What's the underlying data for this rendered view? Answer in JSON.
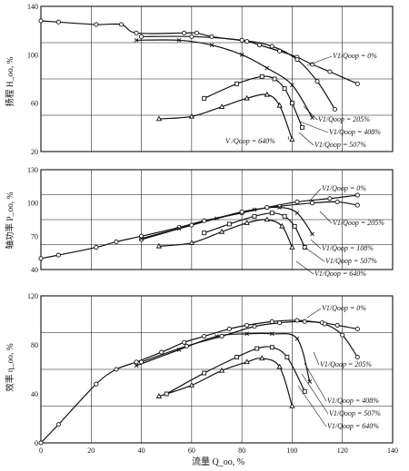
{
  "colors": {
    "ink": "#111111",
    "background": "#ffffff"
  },
  "chart_data": [
    {
      "type": "line",
      "ylabel": "扬程 H_oo, %",
      "ylim": [
        20,
        140
      ],
      "xlim": [
        0,
        140
      ],
      "grid": true,
      "xtick_labels": [],
      "ytick_labels": [
        "140",
        "100",
        "60",
        "20"
      ],
      "series": [
        {
          "name": "V1/Qoop = 0%",
          "marker": "circle",
          "x": [
            0,
            7,
            22,
            32,
            38,
            57,
            62,
            68,
            82,
            87,
            95,
            102,
            108,
            115,
            126
          ],
          "y": [
            128,
            127,
            125,
            125,
            118,
            118,
            118,
            115,
            111,
            108,
            103,
            98,
            92,
            86,
            76
          ]
        },
        {
          "name": "V1/Qoop = 205%",
          "marker": "circle",
          "x": [
            40,
            60,
            80,
            92,
            102,
            110,
            117
          ],
          "y": [
            115,
            115,
            112,
            107,
            96,
            78,
            55
          ]
        },
        {
          "name": "V1/Qoop = 408%",
          "marker": "cross",
          "x": [
            38,
            55,
            68,
            80,
            90,
            100,
            108
          ],
          "y": [
            112,
            112,
            108,
            100,
            89,
            75,
            48
          ]
        },
        {
          "name": "V1/Qoop = 507%",
          "marker": "square",
          "x": [
            65,
            78,
            88,
            93,
            97,
            100,
            104
          ],
          "y": [
            64,
            76,
            82,
            80,
            72,
            60,
            40
          ]
        },
        {
          "name": "V/Qoop = 640%",
          "marker": "triangle",
          "x": [
            47,
            60,
            72,
            82,
            90,
            95,
            100
          ],
          "y": [
            47,
            49,
            57,
            64,
            67,
            58,
            30
          ]
        }
      ]
    },
    {
      "type": "line",
      "ylabel": "轴功率 P_oo, %",
      "ylim": [
        40,
        130
      ],
      "xlim": [
        0,
        140
      ],
      "grid": true,
      "xtick_labels": [],
      "ytick_labels": [
        "130",
        "100",
        "70",
        "40"
      ],
      "series": [
        {
          "name": "V1/Qoop = 0%",
          "marker": "circle",
          "x": [
            0,
            7,
            22,
            30,
            40,
            55,
            65,
            80,
            90,
            102,
            115,
            126
          ],
          "y": [
            50,
            53,
            60,
            65,
            70,
            78,
            84,
            91,
            96,
            101,
            104,
            107
          ]
        },
        {
          "name": "V1/Qoop = 205%",
          "marker": "circle",
          "x": [
            40,
            60,
            80,
            95,
            108,
            118,
            126
          ],
          "y": [
            67,
            80,
            92,
            97,
            100,
            101,
            98
          ]
        },
        {
          "name": "V1/Qoop = 108%",
          "marker": "cross",
          "x": [
            40,
            55,
            70,
            85,
            95,
            102,
            108
          ],
          "y": [
            68,
            77,
            86,
            94,
            96,
            91,
            72
          ]
        },
        {
          "name": "V1/Qoop = 507%",
          "marker": "square",
          "x": [
            65,
            75,
            85,
            92,
            97,
            101,
            105
          ],
          "y": [
            73,
            81,
            88,
            91,
            88,
            79,
            60
          ]
        },
        {
          "name": "V1/Qoop = 640%",
          "marker": "triangle",
          "x": [
            47,
            60,
            72,
            82,
            90,
            96,
            100
          ],
          "y": [
            61,
            64,
            74,
            82,
            85,
            79,
            60
          ]
        }
      ]
    },
    {
      "type": "line",
      "ylabel": "效率 η_oo, %",
      "ylim": [
        0,
        120
      ],
      "xlim": [
        0,
        140
      ],
      "grid": true,
      "xlabel": "流量 Q_oo, %",
      "xtick_labels": [
        "0",
        "20",
        "40",
        "60",
        "80",
        "100",
        "120",
        "140"
      ],
      "ytick_labels": [
        "120",
        "80",
        "40",
        "0"
      ],
      "series": [
        {
          "name": "V1/Qoop = 0%",
          "marker": "circle",
          "x": [
            0,
            7,
            22,
            30,
            38,
            48,
            57,
            65,
            75,
            82,
            92,
            102,
            112,
            118,
            126
          ],
          "y": [
            0,
            15,
            48,
            60,
            66,
            74,
            82,
            87,
            93,
            96,
            99,
            100,
            98,
            96,
            93
          ]
        },
        {
          "name": "V1/Qoop = 205%",
          "marker": "circle",
          "x": [
            40,
            58,
            72,
            85,
            95,
            105,
            113,
            120,
            126
          ],
          "y": [
            66,
            79,
            87,
            95,
            98,
            99,
            97,
            88,
            70
          ]
        },
        {
          "name": "V1/Qoop = 408%",
          "marker": "cross",
          "x": [
            38,
            55,
            70,
            82,
            92,
            102,
            107
          ],
          "y": [
            63,
            76,
            87,
            89,
            89,
            85,
            50
          ]
        },
        {
          "name": "V1/Qoop = 507%",
          "marker": "square",
          "x": [
            50,
            65,
            78,
            86,
            92,
            98,
            105
          ],
          "y": [
            40,
            57,
            70,
            77,
            78,
            70,
            42
          ]
        },
        {
          "name": "V1/Qoop = 640%",
          "marker": "triangle",
          "x": [
            47,
            60,
            72,
            82,
            88,
            95,
            100
          ],
          "y": [
            38,
            47,
            59,
            66,
            69,
            62,
            30
          ]
        }
      ]
    }
  ],
  "labels": {
    "p1": [
      "V1/Qoop = 0%",
      "V1/Qoop = 205%",
      "V1/Qoop = 408%",
      "V1/Qoop = 507%",
      "V /Qoop = 640%"
    ],
    "p2": [
      "V1/Qoop = 0%",
      "V1/Qoop = 205%",
      "V1/Qoop = 108%",
      "V1/Qoop = 507%",
      "V1/Qoop = 640%"
    ],
    "p3": [
      "V1/Qoop = 0%",
      "V1/Qoop = 205%",
      "V1/Qoop = 408%",
      "V1/Qoop = 507%",
      "V1/Qoop = 640%"
    ]
  }
}
